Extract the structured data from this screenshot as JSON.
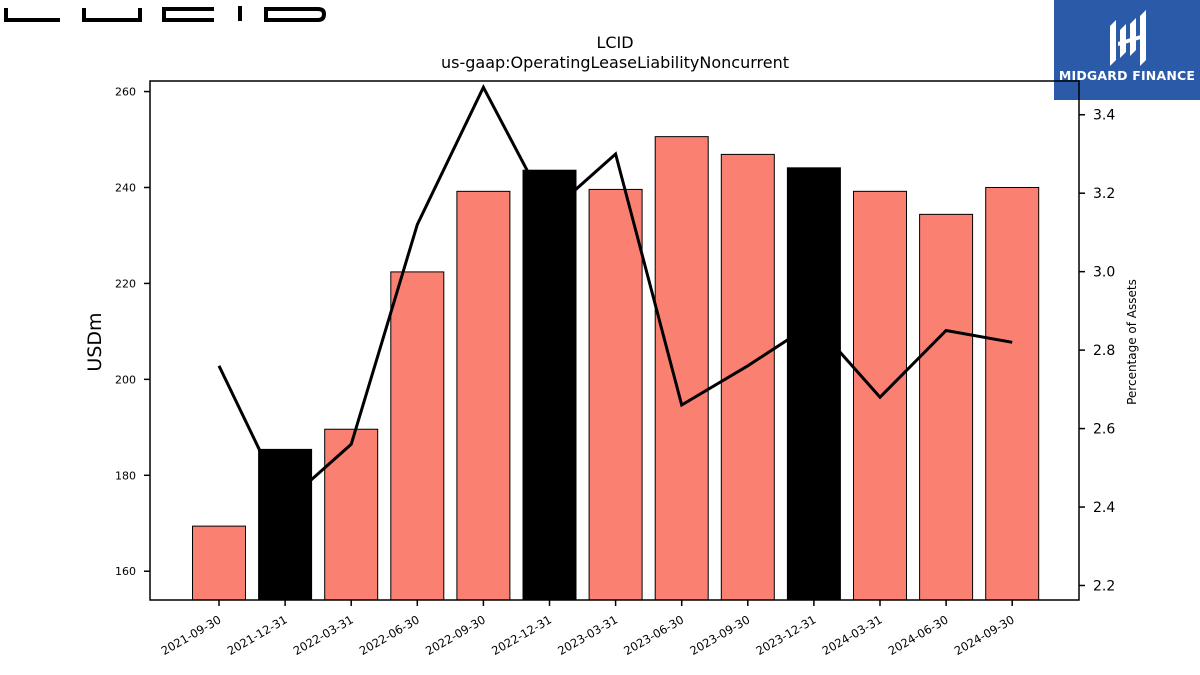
{
  "brand": {
    "company_logo": "LUCID",
    "publisher": "MIDGARD FINANCE",
    "publisher_bg": "#2b5aa8"
  },
  "chart_data": {
    "type": "bar",
    "title": "LCID",
    "subtitle": "us-gaap:OperatingLeaseLiabilityNoncurrent",
    "ylabel": "USDm",
    "y2label": "Percentage of Assets",
    "categories": [
      "2021-09-30",
      "2021-12-31",
      "2022-03-31",
      "2022-06-30",
      "2022-09-30",
      "2022-12-31",
      "2023-03-31",
      "2023-06-30",
      "2023-09-30",
      "2023-12-31",
      "2024-03-31",
      "2024-06-30",
      "2024-09-30"
    ],
    "series": [
      {
        "kind": "bar",
        "values": [
          169.4,
          185.4,
          189.6,
          222.4,
          239.2,
          243.6,
          239.6,
          250.6,
          246.9,
          244.1,
          239.2,
          234.4,
          240.0
        ],
        "colors": [
          "#fa8072",
          "#000000",
          "#fa8072",
          "#fa8072",
          "#fa8072",
          "#000000",
          "#fa8072",
          "#fa8072",
          "#fa8072",
          "#000000",
          "#fa8072",
          "#fa8072",
          "#fa8072"
        ]
      },
      {
        "kind": "line",
        "axis": "right",
        "values": [
          2.76,
          2.41,
          2.56,
          3.12,
          3.47,
          3.15,
          3.3,
          2.66,
          2.76,
          2.87,
          2.68,
          2.85,
          2.82
        ],
        "color": "#000000"
      }
    ],
    "ylim": [
      154,
      262.2
    ],
    "y2lim": [
      2.163,
      3.486
    ],
    "yticks": [
      160,
      180,
      200,
      220,
      240,
      260
    ],
    "y2ticks": [
      2.2,
      2.4,
      2.6,
      2.8,
      3.0,
      3.2,
      3.4
    ],
    "grid": false,
    "legend": "none"
  }
}
